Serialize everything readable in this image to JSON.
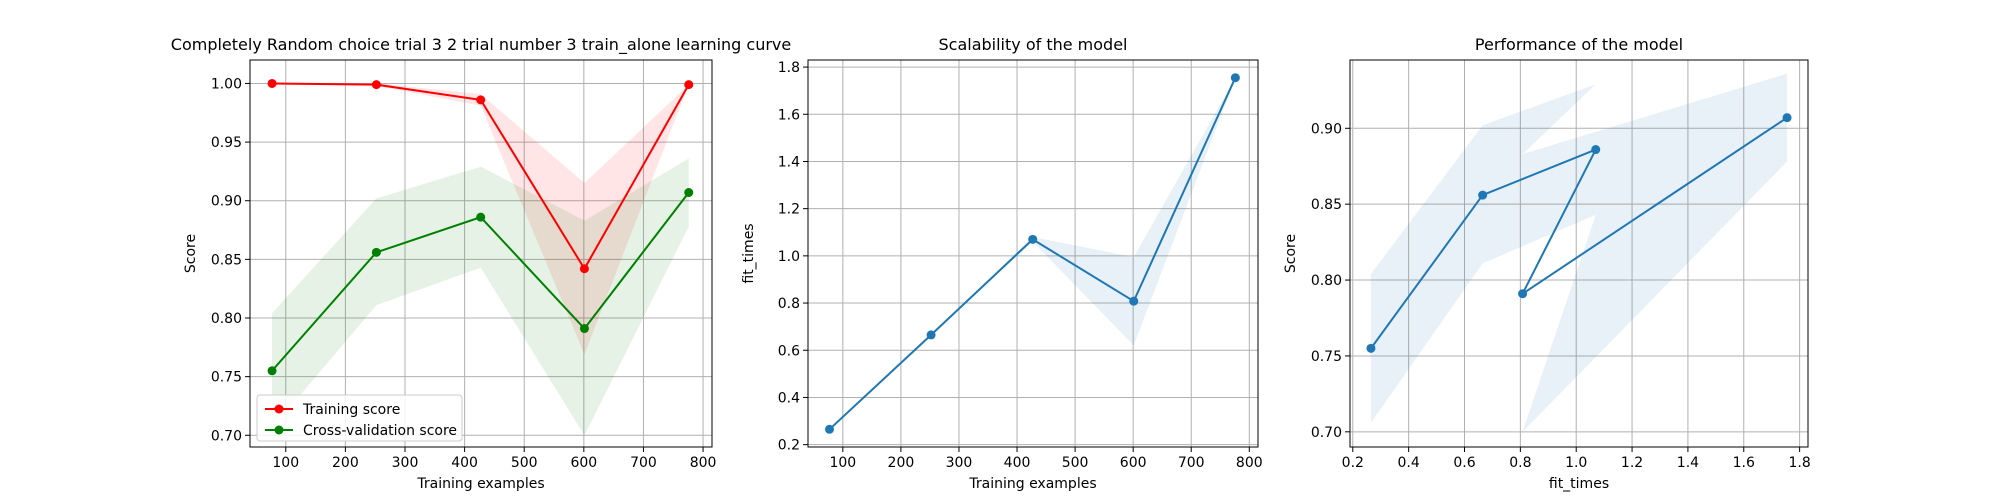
{
  "chart_data": [
    {
      "type": "line",
      "title": "Completely Random choice trial 3 2 trial number 3 train_alone learning curve",
      "xlabel": "Training examples",
      "ylabel": "Score",
      "xlim": [
        40,
        815
      ],
      "ylim": [
        0.69,
        1.02
      ],
      "xticks": [
        100,
        200,
        300,
        400,
        500,
        600,
        700,
        800
      ],
      "yticks": [
        0.7,
        0.75,
        0.8,
        0.85,
        0.9,
        0.95,
        1.0
      ],
      "grid": true,
      "legend": "lower-left",
      "x": [
        77,
        252,
        427,
        601,
        776
      ],
      "series": [
        {
          "name": "Training score",
          "color": "#ff0000",
          "values": [
            1.0,
            0.999,
            0.986,
            0.842,
            0.999
          ],
          "band_low": [
            1.0,
            0.998,
            0.981,
            0.769,
            0.999
          ],
          "band_high": [
            1.0,
            1.0,
            0.991,
            0.915,
            0.999
          ]
        },
        {
          "name": "Cross-validation score",
          "color": "#008000",
          "values": [
            0.755,
            0.856,
            0.886,
            0.791,
            0.907
          ],
          "band_low": [
            0.706,
            0.811,
            0.843,
            0.7,
            0.878
          ],
          "band_high": [
            0.804,
            0.902,
            0.929,
            0.883,
            0.936
          ]
        }
      ]
    },
    {
      "type": "line",
      "title": "Scalability of the model",
      "xlabel": "Training examples",
      "ylabel": "fit_times",
      "xlim": [
        40,
        815
      ],
      "ylim": [
        0.19,
        1.83
      ],
      "xticks": [
        100,
        200,
        300,
        400,
        500,
        600,
        700,
        800
      ],
      "yticks": [
        0.2,
        0.4,
        0.6,
        0.8,
        1.0,
        1.2,
        1.4,
        1.6,
        1.8
      ],
      "grid": true,
      "x": [
        77,
        252,
        427,
        601,
        776
      ],
      "series": [
        {
          "color": "#1f77b4",
          "values": [
            0.265,
            0.665,
            1.07,
            0.808,
            1.755
          ],
          "band_low": [
            0.265,
            0.665,
            1.06,
            0.62,
            1.755
          ],
          "band_high": [
            0.265,
            0.665,
            1.08,
            0.995,
            1.755
          ]
        }
      ]
    },
    {
      "type": "line",
      "title": "Performance of the model",
      "xlabel": "fit_times",
      "ylabel": "Score",
      "xlim": [
        0.19,
        1.83
      ],
      "ylim": [
        0.69,
        0.945
      ],
      "xticks": [
        0.2,
        0.4,
        0.6,
        0.8,
        1.0,
        1.2,
        1.4,
        1.6,
        1.8
      ],
      "yticks": [
        0.7,
        0.75,
        0.8,
        0.85,
        0.9
      ],
      "grid": true,
      "x": [
        0.265,
        0.665,
        1.07,
        0.808,
        1.755
      ],
      "series": [
        {
          "color": "#1f77b4",
          "values": [
            0.755,
            0.856,
            0.886,
            0.791,
            0.907
          ],
          "band_low": [
            0.706,
            0.811,
            0.843,
            0.7,
            0.878
          ],
          "band_high": [
            0.804,
            0.902,
            0.929,
            0.883,
            0.936
          ]
        }
      ]
    }
  ]
}
